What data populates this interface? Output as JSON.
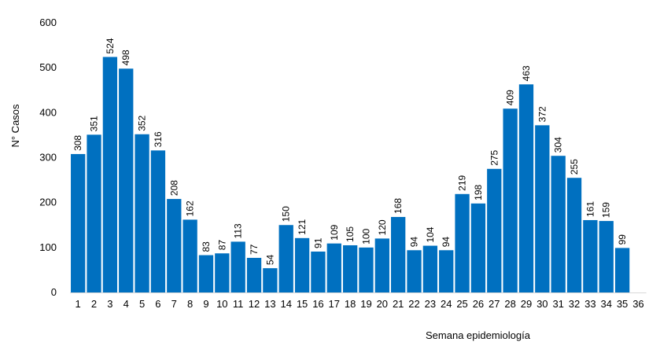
{
  "chart_data": {
    "type": "bar",
    "title": "",
    "xlabel": "Semana epidemiología",
    "ylabel": "N° Casos",
    "ylim": [
      0,
      600
    ],
    "yticks": [
      0,
      100,
      200,
      300,
      400,
      500,
      600
    ],
    "grid": false,
    "bar_color": "#0070C0",
    "categories": [
      "1",
      "2",
      "3",
      "4",
      "5",
      "6",
      "7",
      "8",
      "9",
      "10",
      "11",
      "12",
      "13",
      "14",
      "15",
      "16",
      "17",
      "18",
      "19",
      "20",
      "21",
      "22",
      "23",
      "24",
      "25",
      "26",
      "27",
      "28",
      "29",
      "30",
      "31",
      "32",
      "33",
      "34",
      "35",
      "36"
    ],
    "values": [
      308,
      351,
      524,
      498,
      352,
      316,
      208,
      162,
      83,
      87,
      113,
      77,
      54,
      150,
      121,
      91,
      109,
      105,
      100,
      120,
      168,
      94,
      104,
      94,
      219,
      198,
      275,
      409,
      463,
      372,
      304,
      255,
      161,
      159,
      99,
      null
    ]
  }
}
